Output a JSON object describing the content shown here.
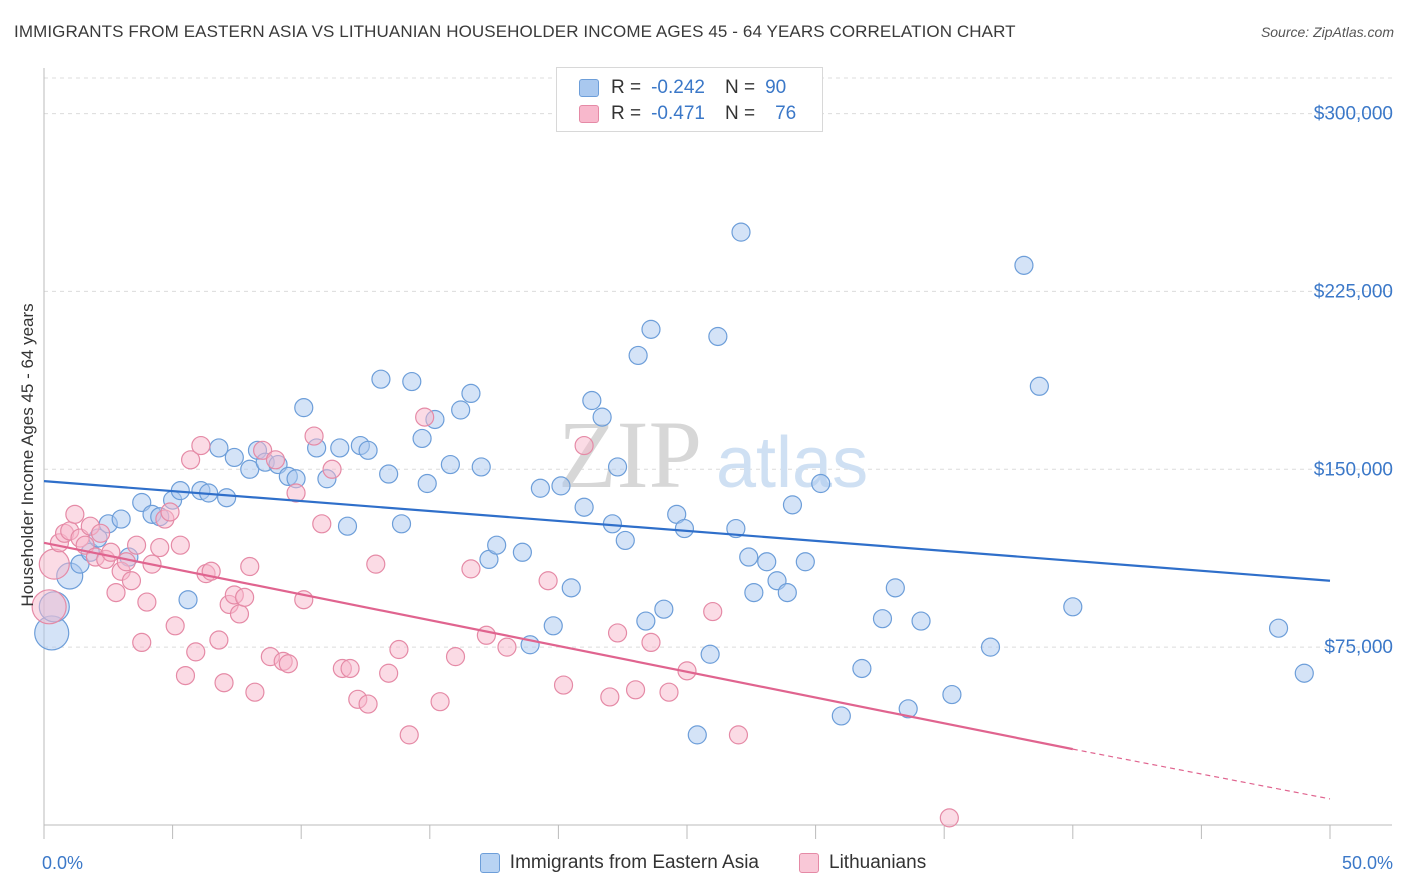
{
  "title": "IMMIGRANTS FROM EASTERN ASIA VS LITHUANIAN HOUSEHOLDER INCOME AGES 45 - 64 YEARS CORRELATION CHART",
  "source": "Source: ZipAtlas.com",
  "watermark": {
    "zip": "ZIP",
    "atlas": "atlas"
  },
  "legend": {
    "rows": [
      {
        "r_label": "R =",
        "r_value": "-0.242",
        "n_label": "N =",
        "n_value": "90",
        "color": "#a9c8ef",
        "stroke": "#6d9ed9"
      },
      {
        "r_label": "R =",
        "r_value": "-0.471",
        "n_label": "N =",
        "n_value": "76",
        "color": "#f8b8cc",
        "stroke": "#e58aa6"
      }
    ]
  },
  "bottom_legend": {
    "items": [
      {
        "label": "Immigrants from Eastern Asia",
        "color": "#b8d3f3",
        "stroke": "#6d9ed9"
      },
      {
        "label": "Lithuanians",
        "color": "#f9c8d7",
        "stroke": "#e58aa6"
      }
    ]
  },
  "chart_data": {
    "type": "scatter",
    "title": "IMMIGRANTS FROM EASTERN ASIA VS LITHUANIAN HOUSEHOLDER INCOME AGES 45 - 64 YEARS CORRELATION CHART",
    "xlabel": "",
    "ylabel": "Householder Income Ages 45 - 64 years",
    "xlim": [
      0,
      50
    ],
    "ylim": [
      0,
      315000
    ],
    "x_tick_labels": [
      "0.0%",
      "50.0%"
    ],
    "y_ticks": [
      75000,
      150000,
      225000,
      300000
    ],
    "y_tick_labels": [
      "$75,000",
      "$150,000",
      "$225,000",
      "$300,000"
    ],
    "grid": true,
    "series": [
      {
        "name": "Immigrants from Eastern Asia",
        "color": "#6d9ed9",
        "fill": "#a9c8ef",
        "trend": {
          "x": [
            0,
            50
          ],
          "y": [
            145000,
            103000
          ],
          "color": "#2f6fca"
        },
        "points": [
          [
            0.3,
            81000
          ],
          [
            0.4,
            92000
          ],
          [
            1.0,
            105000
          ],
          [
            1.4,
            110000
          ],
          [
            1.8,
            115000
          ],
          [
            2.1,
            121000
          ],
          [
            2.5,
            127000
          ],
          [
            3.0,
            129000
          ],
          [
            3.3,
            113000
          ],
          [
            3.8,
            136000
          ],
          [
            4.2,
            131000
          ],
          [
            4.5,
            130000
          ],
          [
            5.0,
            137000
          ],
          [
            5.3,
            141000
          ],
          [
            5.6,
            95000
          ],
          [
            6.1,
            141000
          ],
          [
            6.4,
            140000
          ],
          [
            6.8,
            159000
          ],
          [
            7.1,
            138000
          ],
          [
            7.4,
            155000
          ],
          [
            8.0,
            150000
          ],
          [
            8.3,
            158000
          ],
          [
            8.6,
            153000
          ],
          [
            9.1,
            152000
          ],
          [
            9.5,
            147000
          ],
          [
            9.8,
            146000
          ],
          [
            10.1,
            176000
          ],
          [
            10.6,
            159000
          ],
          [
            11.0,
            146000
          ],
          [
            11.5,
            159000
          ],
          [
            11.8,
            126000
          ],
          [
            12.3,
            160000
          ],
          [
            12.6,
            158000
          ],
          [
            13.1,
            188000
          ],
          [
            13.4,
            148000
          ],
          [
            13.9,
            127000
          ],
          [
            14.3,
            187000
          ],
          [
            14.7,
            163000
          ],
          [
            14.9,
            144000
          ],
          [
            15.2,
            171000
          ],
          [
            15.8,
            152000
          ],
          [
            16.2,
            175000
          ],
          [
            16.6,
            182000
          ],
          [
            17.0,
            151000
          ],
          [
            17.3,
            112000
          ],
          [
            17.6,
            118000
          ],
          [
            18.6,
            115000
          ],
          [
            18.9,
            76000
          ],
          [
            19.3,
            142000
          ],
          [
            19.8,
            84000
          ],
          [
            20.1,
            143000
          ],
          [
            20.5,
            100000
          ],
          [
            21.0,
            134000
          ],
          [
            21.3,
            179000
          ],
          [
            21.7,
            172000
          ],
          [
            22.1,
            127000
          ],
          [
            22.3,
            151000
          ],
          [
            22.6,
            120000
          ],
          [
            23.1,
            198000
          ],
          [
            23.4,
            86000
          ],
          [
            23.6,
            209000
          ],
          [
            24.1,
            91000
          ],
          [
            24.6,
            131000
          ],
          [
            24.9,
            125000
          ],
          [
            25.4,
            38000
          ],
          [
            25.9,
            72000
          ],
          [
            26.2,
            206000
          ],
          [
            26.9,
            125000
          ],
          [
            27.1,
            250000
          ],
          [
            27.4,
            113000
          ],
          [
            27.6,
            98000
          ],
          [
            28.1,
            111000
          ],
          [
            28.5,
            103000
          ],
          [
            28.9,
            98000
          ],
          [
            29.1,
            135000
          ],
          [
            29.6,
            111000
          ],
          [
            30.2,
            144000
          ],
          [
            31.0,
            46000
          ],
          [
            31.8,
            66000
          ],
          [
            32.6,
            87000
          ],
          [
            33.1,
            100000
          ],
          [
            33.6,
            49000
          ],
          [
            34.1,
            86000
          ],
          [
            35.3,
            55000
          ],
          [
            36.8,
            75000
          ],
          [
            38.1,
            236000
          ],
          [
            38.7,
            185000
          ],
          [
            40.0,
            92000
          ],
          [
            48.0,
            83000
          ],
          [
            49.0,
            64000
          ]
        ]
      },
      {
        "name": "Lithuanians",
        "color": "#e58aa6",
        "fill": "#f8b8cc",
        "trend": {
          "x": [
            0,
            40
          ],
          "y": [
            119000,
            32000
          ],
          "dashed_to": [
            50,
            11000
          ],
          "color": "#e0648f"
        },
        "points": [
          [
            0.2,
            92000
          ],
          [
            0.4,
            110000
          ],
          [
            0.6,
            119000
          ],
          [
            0.8,
            123000
          ],
          [
            1.0,
            124000
          ],
          [
            1.2,
            131000
          ],
          [
            1.4,
            121000
          ],
          [
            1.6,
            118000
          ],
          [
            1.8,
            126000
          ],
          [
            2.0,
            113000
          ],
          [
            2.2,
            123000
          ],
          [
            2.4,
            112000
          ],
          [
            2.6,
            115000
          ],
          [
            2.8,
            98000
          ],
          [
            3.0,
            107000
          ],
          [
            3.2,
            111000
          ],
          [
            3.4,
            103000
          ],
          [
            3.6,
            118000
          ],
          [
            3.8,
            77000
          ],
          [
            4.0,
            94000
          ],
          [
            4.2,
            110000
          ],
          [
            4.5,
            117000
          ],
          [
            4.7,
            129000
          ],
          [
            4.9,
            132000
          ],
          [
            5.1,
            84000
          ],
          [
            5.3,
            118000
          ],
          [
            5.5,
            63000
          ],
          [
            5.7,
            154000
          ],
          [
            5.9,
            73000
          ],
          [
            6.1,
            160000
          ],
          [
            6.3,
            106000
          ],
          [
            6.5,
            107000
          ],
          [
            6.8,
            78000
          ],
          [
            7.0,
            60000
          ],
          [
            7.2,
            93000
          ],
          [
            7.4,
            97000
          ],
          [
            7.6,
            89000
          ],
          [
            7.8,
            96000
          ],
          [
            8.0,
            109000
          ],
          [
            8.2,
            56000
          ],
          [
            8.5,
            158000
          ],
          [
            8.8,
            71000
          ],
          [
            9.0,
            154000
          ],
          [
            9.3,
            69000
          ],
          [
            9.5,
            68000
          ],
          [
            9.8,
            140000
          ],
          [
            10.1,
            95000
          ],
          [
            10.5,
            164000
          ],
          [
            10.8,
            127000
          ],
          [
            11.2,
            150000
          ],
          [
            11.6,
            66000
          ],
          [
            11.9,
            66000
          ],
          [
            12.2,
            53000
          ],
          [
            12.6,
            51000
          ],
          [
            12.9,
            110000
          ],
          [
            13.4,
            64000
          ],
          [
            13.8,
            74000
          ],
          [
            14.2,
            38000
          ],
          [
            14.8,
            172000
          ],
          [
            15.4,
            52000
          ],
          [
            16.0,
            71000
          ],
          [
            16.6,
            108000
          ],
          [
            17.2,
            80000
          ],
          [
            18.0,
            75000
          ],
          [
            19.6,
            103000
          ],
          [
            20.2,
            59000
          ],
          [
            21.0,
            160000
          ],
          [
            22.0,
            54000
          ],
          [
            22.3,
            81000
          ],
          [
            23.0,
            57000
          ],
          [
            23.6,
            77000
          ],
          [
            24.3,
            56000
          ],
          [
            25.0,
            65000
          ],
          [
            26.0,
            90000
          ],
          [
            27.0,
            38000
          ],
          [
            35.2,
            3000
          ]
        ]
      }
    ]
  }
}
